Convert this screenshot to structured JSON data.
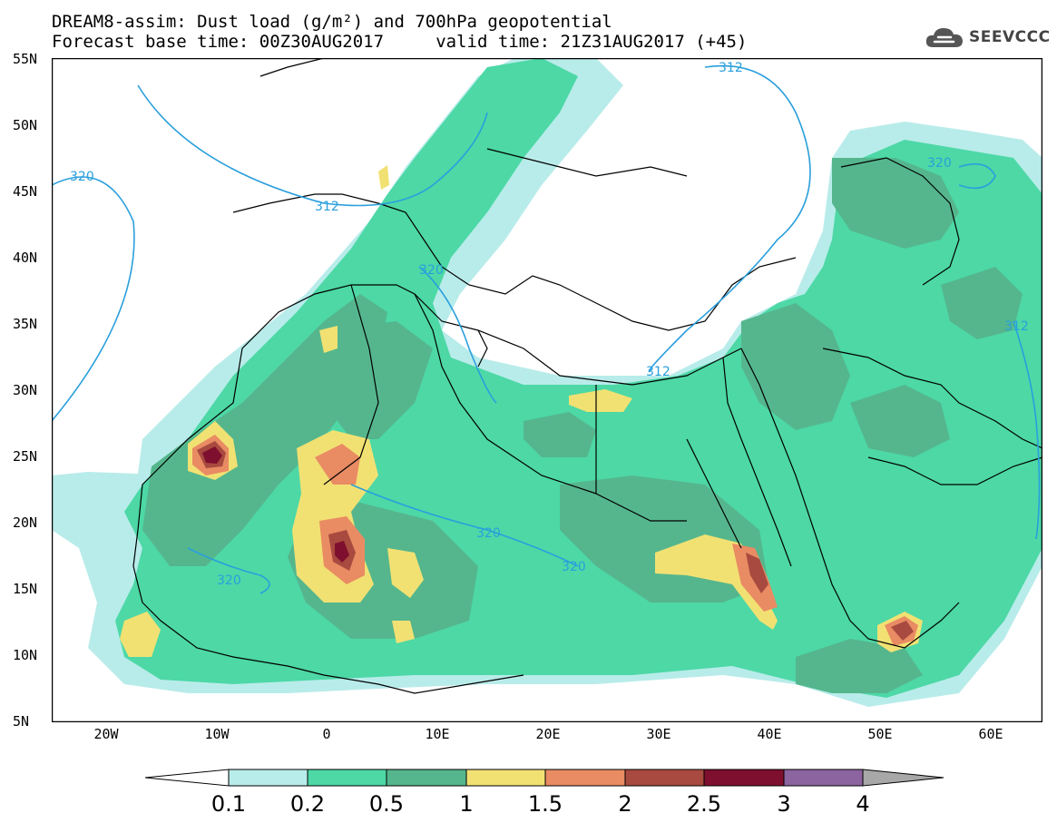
{
  "title": {
    "line1": "DREAM8-assim: Dust load (g/m²) and 700hPa geopotential",
    "line2": "Forecast base time: 00Z30AUG2017     valid time: 21Z31AUG2017 (+45)"
  },
  "logo": {
    "text": "SEEVCCC",
    "icon": "cloud-icon",
    "color": "#555555"
  },
  "map": {
    "lat_labels": [
      "55N",
      "50N",
      "45N",
      "40N",
      "35N",
      "30N",
      "25N",
      "20N",
      "15N",
      "10N",
      "5N"
    ],
    "lon_labels": [
      "20W",
      "10W",
      "0",
      "10E",
      "20E",
      "30E",
      "40E",
      "50E",
      "60E"
    ],
    "contour_labels": [
      "320",
      "312",
      "320",
      "320",
      "320",
      "320",
      "320",
      "312",
      "312",
      "320",
      "312"
    ]
  },
  "legend": {
    "levels": [
      "0.1",
      "0.2",
      "0.5",
      "1",
      "1.5",
      "2",
      "2.5",
      "3",
      "4"
    ],
    "colors": [
      "#ffffff",
      "#b8ecea",
      "#4dd8a6",
      "#55b68d",
      "#f1e173",
      "#e98b63",
      "#a84a3f",
      "#7f0f2e",
      "#8c64a0",
      "#a8a8a8"
    ]
  },
  "palette": {
    "land_line": "#000000",
    "contour": "#2a9fdc",
    "dust_01": "#b8ecea",
    "dust_02": "#4dd8a6",
    "dust_05": "#55b68d",
    "dust_1": "#f1e173",
    "dust_15": "#e98b63",
    "dust_2": "#a84a3f",
    "dust_25": "#7f0f2e"
  }
}
